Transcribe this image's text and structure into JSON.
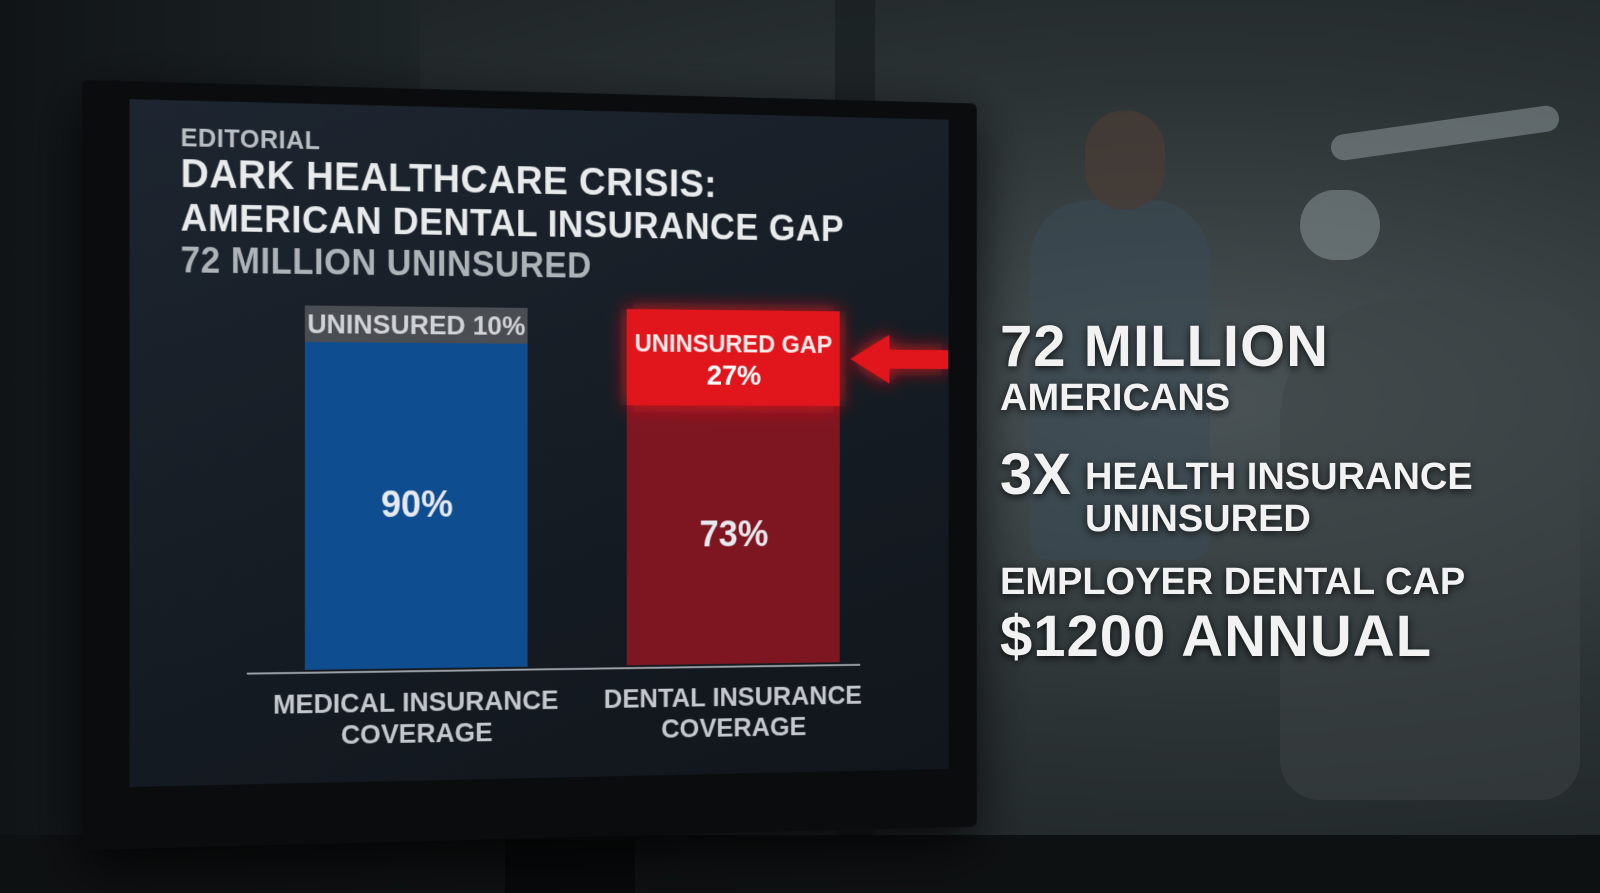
{
  "screen": {
    "kicker": "EDITORIAL",
    "title_line1": "DARK HEALTHCARE CRISIS:",
    "title_line2": "AMERICAN DENTAL INSURANCE GAP",
    "subtitle": "72 MILLION UNINSURED"
  },
  "stats": {
    "line1_big": "72 MILLION",
    "line1_small": "AMERICANS",
    "line2_multiplier": "3x",
    "line2_text_a": "HEALTH INSURANCE",
    "line2_text_b": "UNINSURED",
    "line3_small": "EMPLOYER DENTAL CAP",
    "line3_big": "$1200 ANNUAL"
  },
  "colors": {
    "medical_covered": "#0f4d91",
    "medical_uninsured": "#4a4d52",
    "dental_covered": "#7e1622",
    "dental_gap": "#e0161c",
    "arrow": "#e0161c"
  },
  "chart_data": {
    "type": "bar",
    "stacked": true,
    "categories": [
      "MEDICAL INSURANCE COVERAGE",
      "DENTAL INSURANCE COVERAGE"
    ],
    "category_label_lines": [
      [
        "MEDICAL INSURANCE",
        "COVERAGE"
      ],
      [
        "DENTAL INSURANCE",
        "COVERAGE"
      ]
    ],
    "series": [
      {
        "values": [
          90,
          73
        ],
        "labels": [
          "90%",
          "73%"
        ]
      },
      {
        "values": [
          10,
          27
        ],
        "labels": [
          [
            "UNINSURED 10%"
          ],
          [
            "UNINSURED GAP",
            "27%"
          ]
        ]
      }
    ],
    "ylim": [
      0,
      100
    ],
    "highlight": "UNINSURED GAP 27%"
  }
}
